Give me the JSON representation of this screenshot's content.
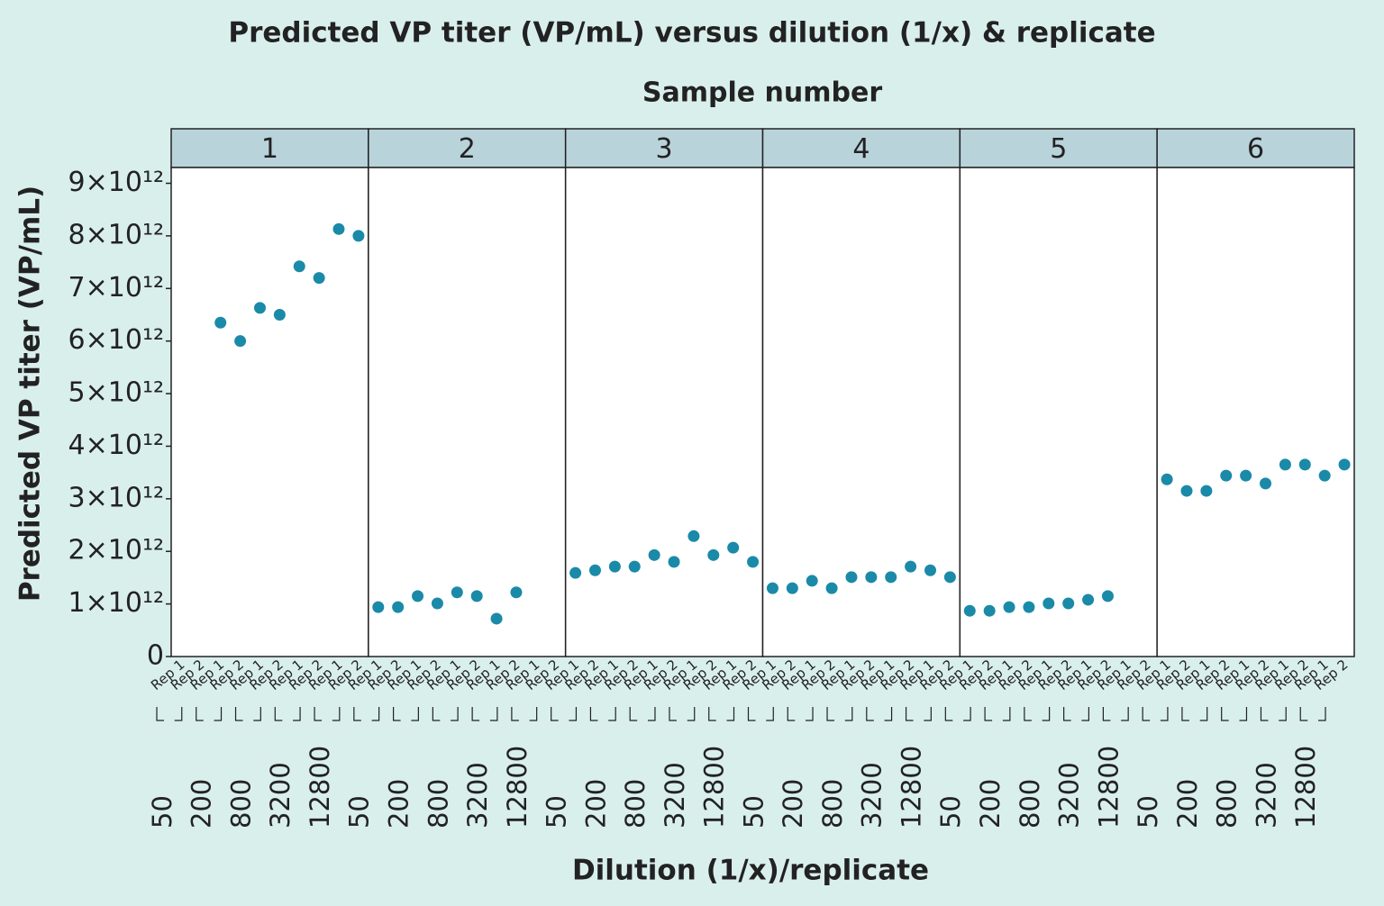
{
  "chart_data": {
    "type": "scatter",
    "title": "Predicted VP titer (VP/mL) versus dilution (1/x) & replicate",
    "facet_title": "Sample number",
    "y_label": "Predicted VP titer (VP/mL)",
    "x_label": "Dilution (1/x)/replicate",
    "color": "#1a8aa8",
    "dilutions": [
      "50",
      "200",
      "800",
      "3200",
      "12800"
    ],
    "replicates": [
      "Rep 1",
      "Rep 2"
    ],
    "panels": [
      {
        "name": "1",
        "values": [
          null,
          null,
          6350000000000.0,
          6000000000000.0,
          6630000000000.0,
          6500000000000.0,
          7420000000000.0,
          7200000000000.0,
          8130000000000.0,
          8000000000000.0
        ]
      },
      {
        "name": "2",
        "values": [
          940000000000.0,
          940000000000.0,
          1150000000000.0,
          1010000000000.0,
          1220000000000.0,
          1150000000000.0,
          720000000000.0,
          1220000000000.0,
          null,
          null
        ]
      },
      {
        "name": "3",
        "values": [
          1590000000000.0,
          1640000000000.0,
          1710000000000.0,
          1710000000000.0,
          1930000000000.0,
          1800000000000.0,
          2290000000000.0,
          1930000000000.0,
          2070000000000.0,
          1800000000000.0
        ]
      },
      {
        "name": "4",
        "values": [
          1300000000000.0,
          1300000000000.0,
          1440000000000.0,
          1300000000000.0,
          1510000000000.0,
          1510000000000.0,
          1510000000000.0,
          1710000000000.0,
          1640000000000.0,
          1510000000000.0
        ]
      },
      {
        "name": "5",
        "values": [
          870000000000.0,
          870000000000.0,
          940000000000.0,
          940000000000.0,
          1010000000000.0,
          1010000000000.0,
          1080000000000.0,
          1150000000000.0,
          null,
          null
        ]
      },
      {
        "name": "6",
        "values": [
          3370000000000.0,
          3150000000000.0,
          3150000000000.0,
          3440000000000.0,
          3440000000000.0,
          3290000000000.0,
          3650000000000.0,
          3650000000000.0,
          3440000000000.0,
          3650000000000.0
        ]
      }
    ],
    "ylim": [
      0,
      9300000000000.0
    ],
    "yticks": [
      0,
      {
        "value": 1000000000000.0,
        "label": "1×10¹²"
      },
      {
        "value": 2000000000000.0,
        "label": "2×10¹²"
      },
      {
        "value": 3000000000000.0,
        "label": "3×10¹²"
      },
      {
        "value": 4000000000000.0,
        "label": "4×10¹²"
      },
      {
        "value": 5000000000000.0,
        "label": "5×10¹²"
      },
      {
        "value": 6000000000000.0,
        "label": "6×10¹²"
      },
      {
        "value": 7000000000000.0,
        "label": "7×10¹²"
      },
      {
        "value": 8000000000000.0,
        "label": "8×10¹²"
      },
      {
        "value": 9000000000000.0,
        "label": "9×10¹²"
      }
    ]
  }
}
